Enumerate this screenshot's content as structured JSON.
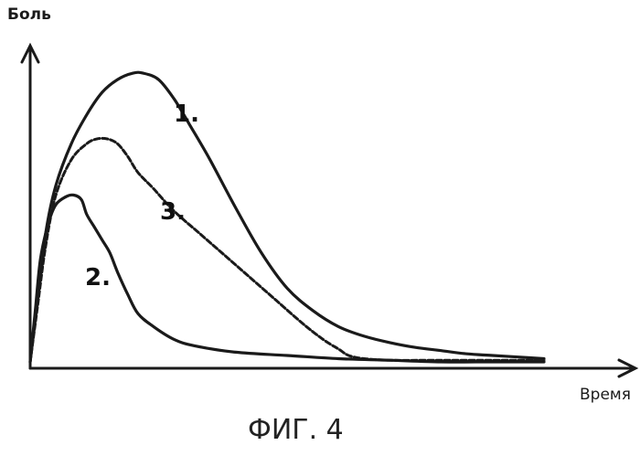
{
  "caption": "ФИГ. 4",
  "chart_data": {
    "type": "line",
    "xlabel": "Время",
    "ylabel": "Боль",
    "xlim": [
      0,
      100
    ],
    "ylim": [
      0,
      100
    ],
    "grid": false,
    "legend": "none",
    "series": [
      {
        "name": "1.",
        "style": "solid",
        "color": "#1a1a1a",
        "x": [
          0,
          1.5,
          3,
          5,
          8,
          11,
          14,
          17,
          20,
          22,
          25,
          28,
          31,
          35,
          40,
          45,
          50,
          55,
          60,
          65,
          70,
          75,
          80,
          85,
          90,
          95,
          100
        ],
        "y": [
          2,
          22,
          42,
          57,
          70,
          79,
          86,
          90,
          92,
          92,
          90,
          84,
          76,
          65,
          50,
          36,
          25,
          18,
          13,
          10,
          8,
          6.5,
          5.5,
          4.5,
          4,
          3.5,
          3
        ]
      },
      {
        "name": "2.",
        "style": "solid",
        "color": "#1a1a1a",
        "x": [
          0,
          1,
          2,
          3.5,
          5,
          7,
          8.5,
          10,
          11,
          12.5,
          14,
          15.5,
          17,
          19,
          21,
          24,
          28,
          32,
          40,
          50,
          60,
          70,
          80,
          90,
          100
        ],
        "y": [
          2,
          18,
          34,
          45,
          51,
          53.5,
          54,
          52.5,
          48,
          44,
          40,
          36,
          30,
          23,
          17,
          13,
          9,
          7,
          5,
          4,
          3,
          2.5,
          2,
          2,
          2
        ]
      },
      {
        "name": "3.",
        "style": "dashed",
        "color": "#1a1a1a",
        "x": [
          0,
          1.5,
          3,
          5,
          8,
          11,
          13,
          15,
          17,
          19,
          21,
          24,
          28,
          33,
          38,
          43,
          48,
          53,
          57,
          60,
          62,
          65,
          70,
          80,
          90,
          100
        ],
        "y": [
          2,
          20,
          38,
          54,
          65,
          70,
          71.5,
          71.5,
          70,
          66,
          61,
          56,
          49,
          42,
          35,
          28,
          21,
          14,
          9,
          6,
          4,
          3,
          2.5,
          2.5,
          2.5,
          2.5
        ]
      }
    ]
  }
}
